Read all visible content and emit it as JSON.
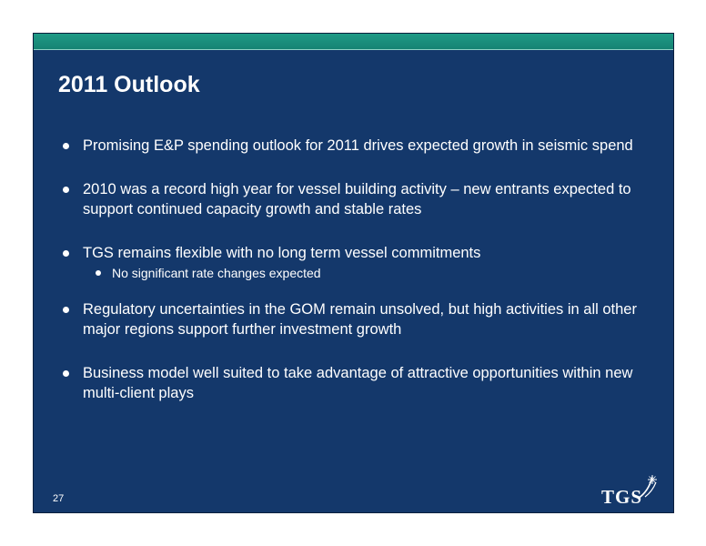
{
  "slide": {
    "title": "2011 Outlook",
    "bullets": [
      {
        "text": "Promising E&P spending outlook for 2011 drives expected growth in seismic spend"
      },
      {
        "text": "2010 was a record high year for vessel building activity – new entrants expected to support continued capacity growth and stable rates"
      },
      {
        "text": "TGS remains flexible with no long term vessel commitments",
        "sub": [
          "No significant rate changes expected"
        ]
      },
      {
        "text": "Regulatory uncertainties in the GOM remain unsolved, but high activities in all other major regions support further investment growth"
      },
      {
        "text": "Business model well suited to take advantage of attractive opportunities within new multi-client plays"
      }
    ],
    "page_number": "27",
    "logo_text": "TGS"
  },
  "colors": {
    "background": "#14386b",
    "header_band": "#1f9a86",
    "text": "#ffffff"
  }
}
